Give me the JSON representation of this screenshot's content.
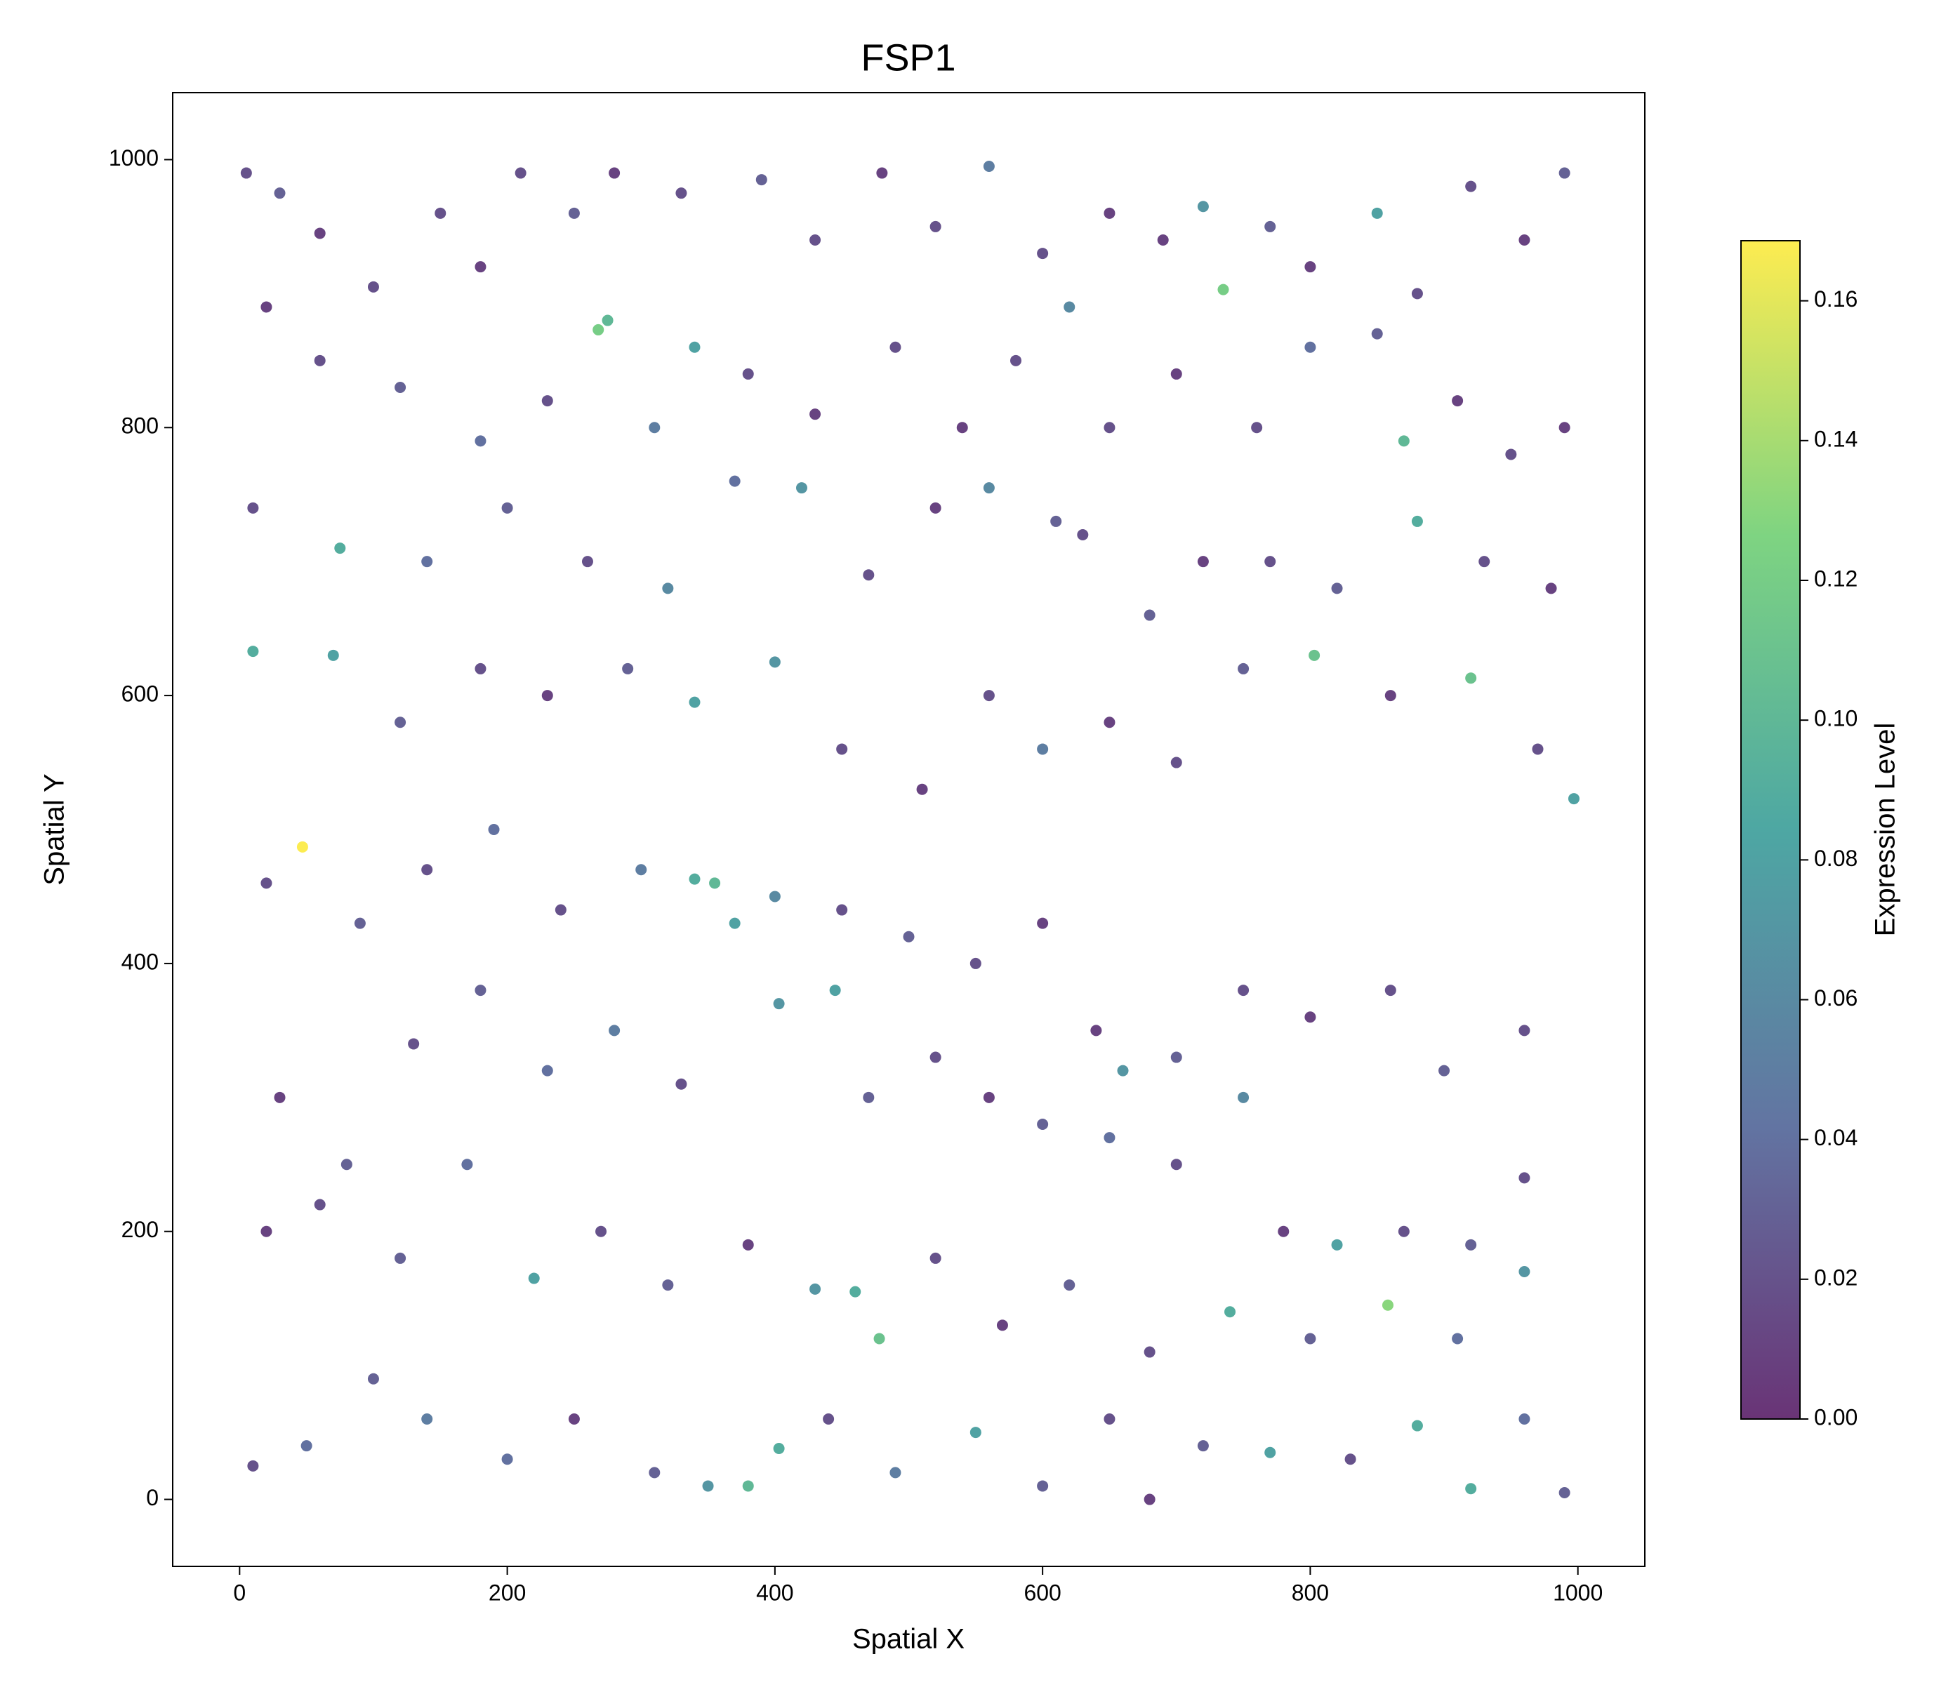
{
  "chart_data": {
    "type": "scatter",
    "title": "FSP1",
    "xlabel": "Spatial X",
    "ylabel": "Spatial Y",
    "colorbar_label": "Expression Level",
    "colormap": [
      "#440154",
      "#3b528b",
      "#21918c",
      "#5ec962",
      "#fde725"
    ],
    "xlim": [
      -50,
      1050
    ],
    "ylim": [
      -50,
      1050
    ],
    "xticks": [
      0,
      200,
      400,
      600,
      800,
      1000
    ],
    "yticks": [
      0,
      200,
      400,
      600,
      800,
      1000
    ],
    "clim": [
      0,
      0.1686
    ],
    "cticks": [
      {
        "value": 0,
        "label": "0.00"
      },
      0.02,
      0.04,
      0.06,
      0.08,
      {
        "value": 0.1,
        "label": "0.10"
      },
      0.12,
      0.14,
      0.16
    ],
    "grid": false,
    "x": [
      5,
      30,
      60,
      100,
      150,
      180,
      210,
      250,
      280,
      330,
      390,
      430,
      480,
      520,
      560,
      600,
      650,
      690,
      720,
      735,
      770,
      800,
      850,
      880,
      920,
      960,
      990,
      20,
      60,
      120,
      180,
      230,
      268,
      275,
      310,
      340,
      380,
      430,
      490,
      540,
      580,
      620,
      650,
      700,
      760,
      800,
      850,
      870,
      910,
      950,
      990,
      10,
      75,
      140,
      200,
      260,
      320,
      370,
      420,
      470,
      520,
      560,
      610,
      630,
      680,
      720,
      770,
      820,
      880,
      930,
      980,
      10,
      70,
      120,
      180,
      230,
      290,
      340,
      400,
      450,
      510,
      560,
      600,
      650,
      700,
      750,
      803,
      860,
      920,
      970,
      997,
      47,
      20,
      90,
      140,
      190,
      240,
      300,
      340,
      355,
      370,
      400,
      450,
      500,
      550,
      600,
      640,
      660,
      700,
      750,
      800,
      860,
      900,
      960,
      30,
      80,
      130,
      180,
      230,
      280,
      330,
      403,
      445,
      470,
      520,
      560,
      600,
      650,
      700,
      750,
      780,
      820,
      870,
      920,
      960,
      20,
      60,
      120,
      170,
      220,
      270,
      320,
      380,
      430,
      460,
      478,
      520,
      570,
      620,
      680,
      740,
      800,
      858,
      910,
      960,
      10,
      50,
      100,
      140,
      200,
      250,
      310,
      350,
      380,
      403,
      440,
      490,
      550,
      600,
      650,
      680,
      720,
      770,
      830,
      880,
      920,
      960,
      990
    ],
    "y": [
      990,
      975,
      945,
      905,
      960,
      920,
      990,
      960,
      990,
      975,
      985,
      940,
      990,
      950,
      995,
      930,
      960,
      940,
      965,
      903,
      950,
      920,
      960,
      900,
      980,
      940,
      990,
      890,
      850,
      830,
      790,
      820,
      873,
      880,
      800,
      860,
      840,
      810,
      860,
      800,
      850,
      890,
      800,
      840,
      800,
      860,
      870,
      790,
      820,
      780,
      800,
      740,
      710,
      700,
      740,
      700,
      680,
      760,
      755,
      690,
      740,
      755,
      730,
      720,
      660,
      700,
      700,
      680,
      730,
      700,
      680,
      633,
      630,
      580,
      620,
      600,
      620,
      595,
      625,
      560,
      530,
      600,
      560,
      580,
      550,
      620,
      630,
      600,
      613,
      560,
      523,
      487,
      460,
      430,
      470,
      500,
      440,
      470,
      463,
      460,
      430,
      450,
      440,
      420,
      400,
      430,
      350,
      320,
      330,
      380,
      360,
      380,
      320,
      350,
      300,
      250,
      340,
      380,
      320,
      350,
      310,
      370,
      380,
      300,
      330,
      300,
      280,
      270,
      250,
      300,
      200,
      190,
      200,
      190,
      240,
      200,
      220,
      180,
      250,
      165,
      200,
      160,
      190,
      157,
      155,
      120,
      180,
      130,
      160,
      110,
      140,
      120,
      145,
      120,
      170,
      25,
      40,
      90,
      60,
      30,
      60,
      20,
      10,
      10,
      38,
      60,
      20,
      50,
      10,
      60,
      0,
      40,
      35,
      30,
      55,
      8,
      60,
      5
    ],
    "values": [
      0.02,
      0.03,
      0.01,
      0.02,
      0.02,
      0.01,
      0.02,
      0.03,
      0.01,
      0.02,
      0.03,
      0.02,
      0.01,
      0.02,
      0.05,
      0.02,
      0.01,
      0.01,
      0.07,
      0.12,
      0.03,
      0.01,
      0.08,
      0.02,
      0.02,
      0.01,
      0.03,
      0.01,
      0.02,
      0.03,
      0.04,
      0.02,
      0.12,
      0.1,
      0.05,
      0.08,
      0.02,
      0.01,
      0.02,
      0.01,
      0.02,
      0.06,
      0.02,
      0.01,
      0.02,
      0.04,
      0.03,
      0.1,
      0.01,
      0.02,
      0.01,
      0.02,
      0.09,
      0.04,
      0.03,
      0.02,
      0.06,
      0.04,
      0.07,
      0.02,
      0.01,
      0.06,
      0.03,
      0.02,
      0.03,
      0.01,
      0.02,
      0.03,
      0.09,
      0.02,
      0.01,
      0.09,
      0.08,
      0.03,
      0.02,
      0.01,
      0.03,
      0.08,
      0.07,
      0.02,
      0.01,
      0.02,
      0.05,
      0.01,
      0.02,
      0.03,
      0.11,
      0.01,
      0.11,
      0.02,
      0.08,
      0.168,
      0.02,
      0.03,
      0.02,
      0.04,
      0.02,
      0.05,
      0.09,
      0.1,
      0.08,
      0.06,
      0.02,
      0.03,
      0.02,
      0.01,
      0.01,
      0.07,
      0.03,
      0.02,
      0.01,
      0.02,
      0.03,
      0.02,
      0.01,
      0.03,
      0.02,
      0.03,
      0.04,
      0.05,
      0.02,
      0.07,
      0.08,
      0.03,
      0.02,
      0.01,
      0.03,
      0.04,
      0.02,
      0.06,
      0.01,
      0.08,
      0.02,
      0.03,
      0.02,
      0.01,
      0.02,
      0.03,
      0.04,
      0.08,
      0.02,
      0.03,
      0.01,
      0.07,
      0.09,
      0.11,
      0.02,
      0.01,
      0.03,
      0.02,
      0.09,
      0.03,
      0.13,
      0.04,
      0.07,
      0.02,
      0.04,
      0.03,
      0.05,
      0.04,
      0.01,
      0.03,
      0.07,
      0.1,
      0.09,
      0.02,
      0.05,
      0.08,
      0.03,
      0.02,
      0.01,
      0.03,
      0.08,
      0.02,
      0.09,
      0.09,
      0.04,
      0.03
    ]
  }
}
